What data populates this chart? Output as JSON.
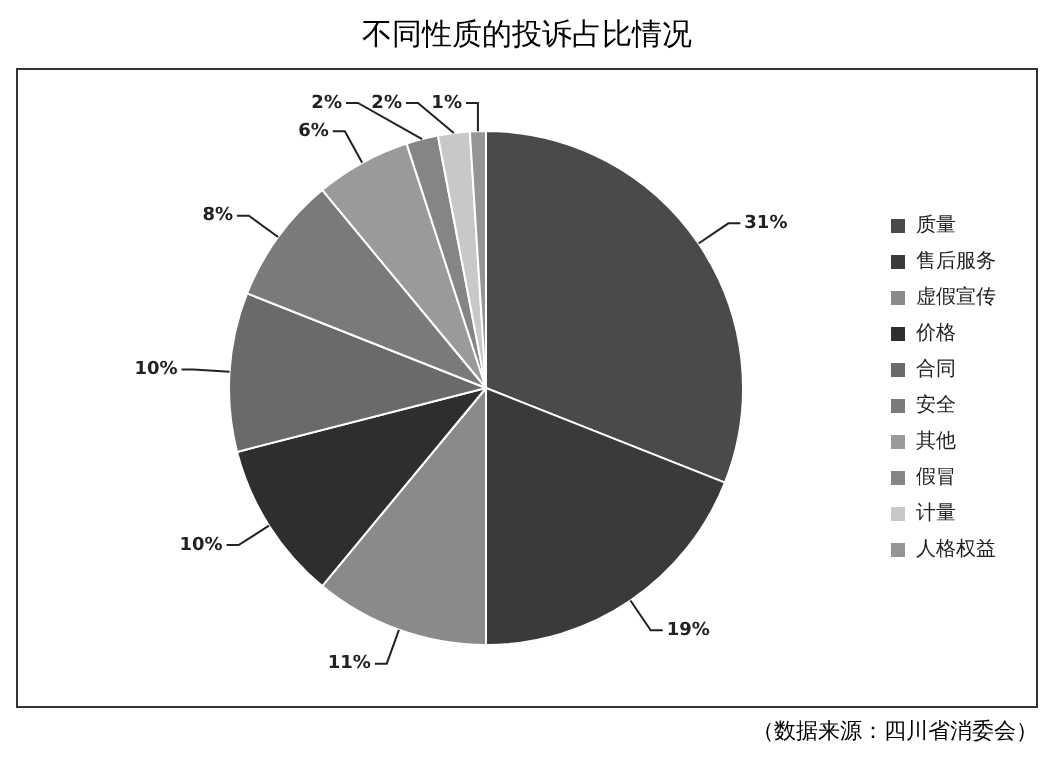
{
  "chart_data": {
    "type": "pie",
    "title": "不同性质的投诉占比情况",
    "categories": [
      "质量",
      "售后服务",
      "虚假宣传",
      "价格",
      "合同",
      "安全",
      "其他",
      "假冒",
      "计量",
      "人格权益"
    ],
    "values": [
      31,
      19,
      11,
      10,
      10,
      8,
      6,
      2,
      2,
      1
    ],
    "value_labels": [
      "31%",
      "19%",
      "11%",
      "10%",
      "10%",
      "8%",
      "6%",
      "2%",
      "2%",
      "1%"
    ],
    "colors": [
      "#4a4a4a",
      "#3a3a3a",
      "#8a8a8a",
      "#2e2e2e",
      "#6a6a6a",
      "#7a7a7a",
      "#9a9a9a",
      "#858585",
      "#c8c8c8",
      "#959595"
    ],
    "legend": "right",
    "annotations": [
      "（数据来源：四川省消委会）"
    ]
  }
}
